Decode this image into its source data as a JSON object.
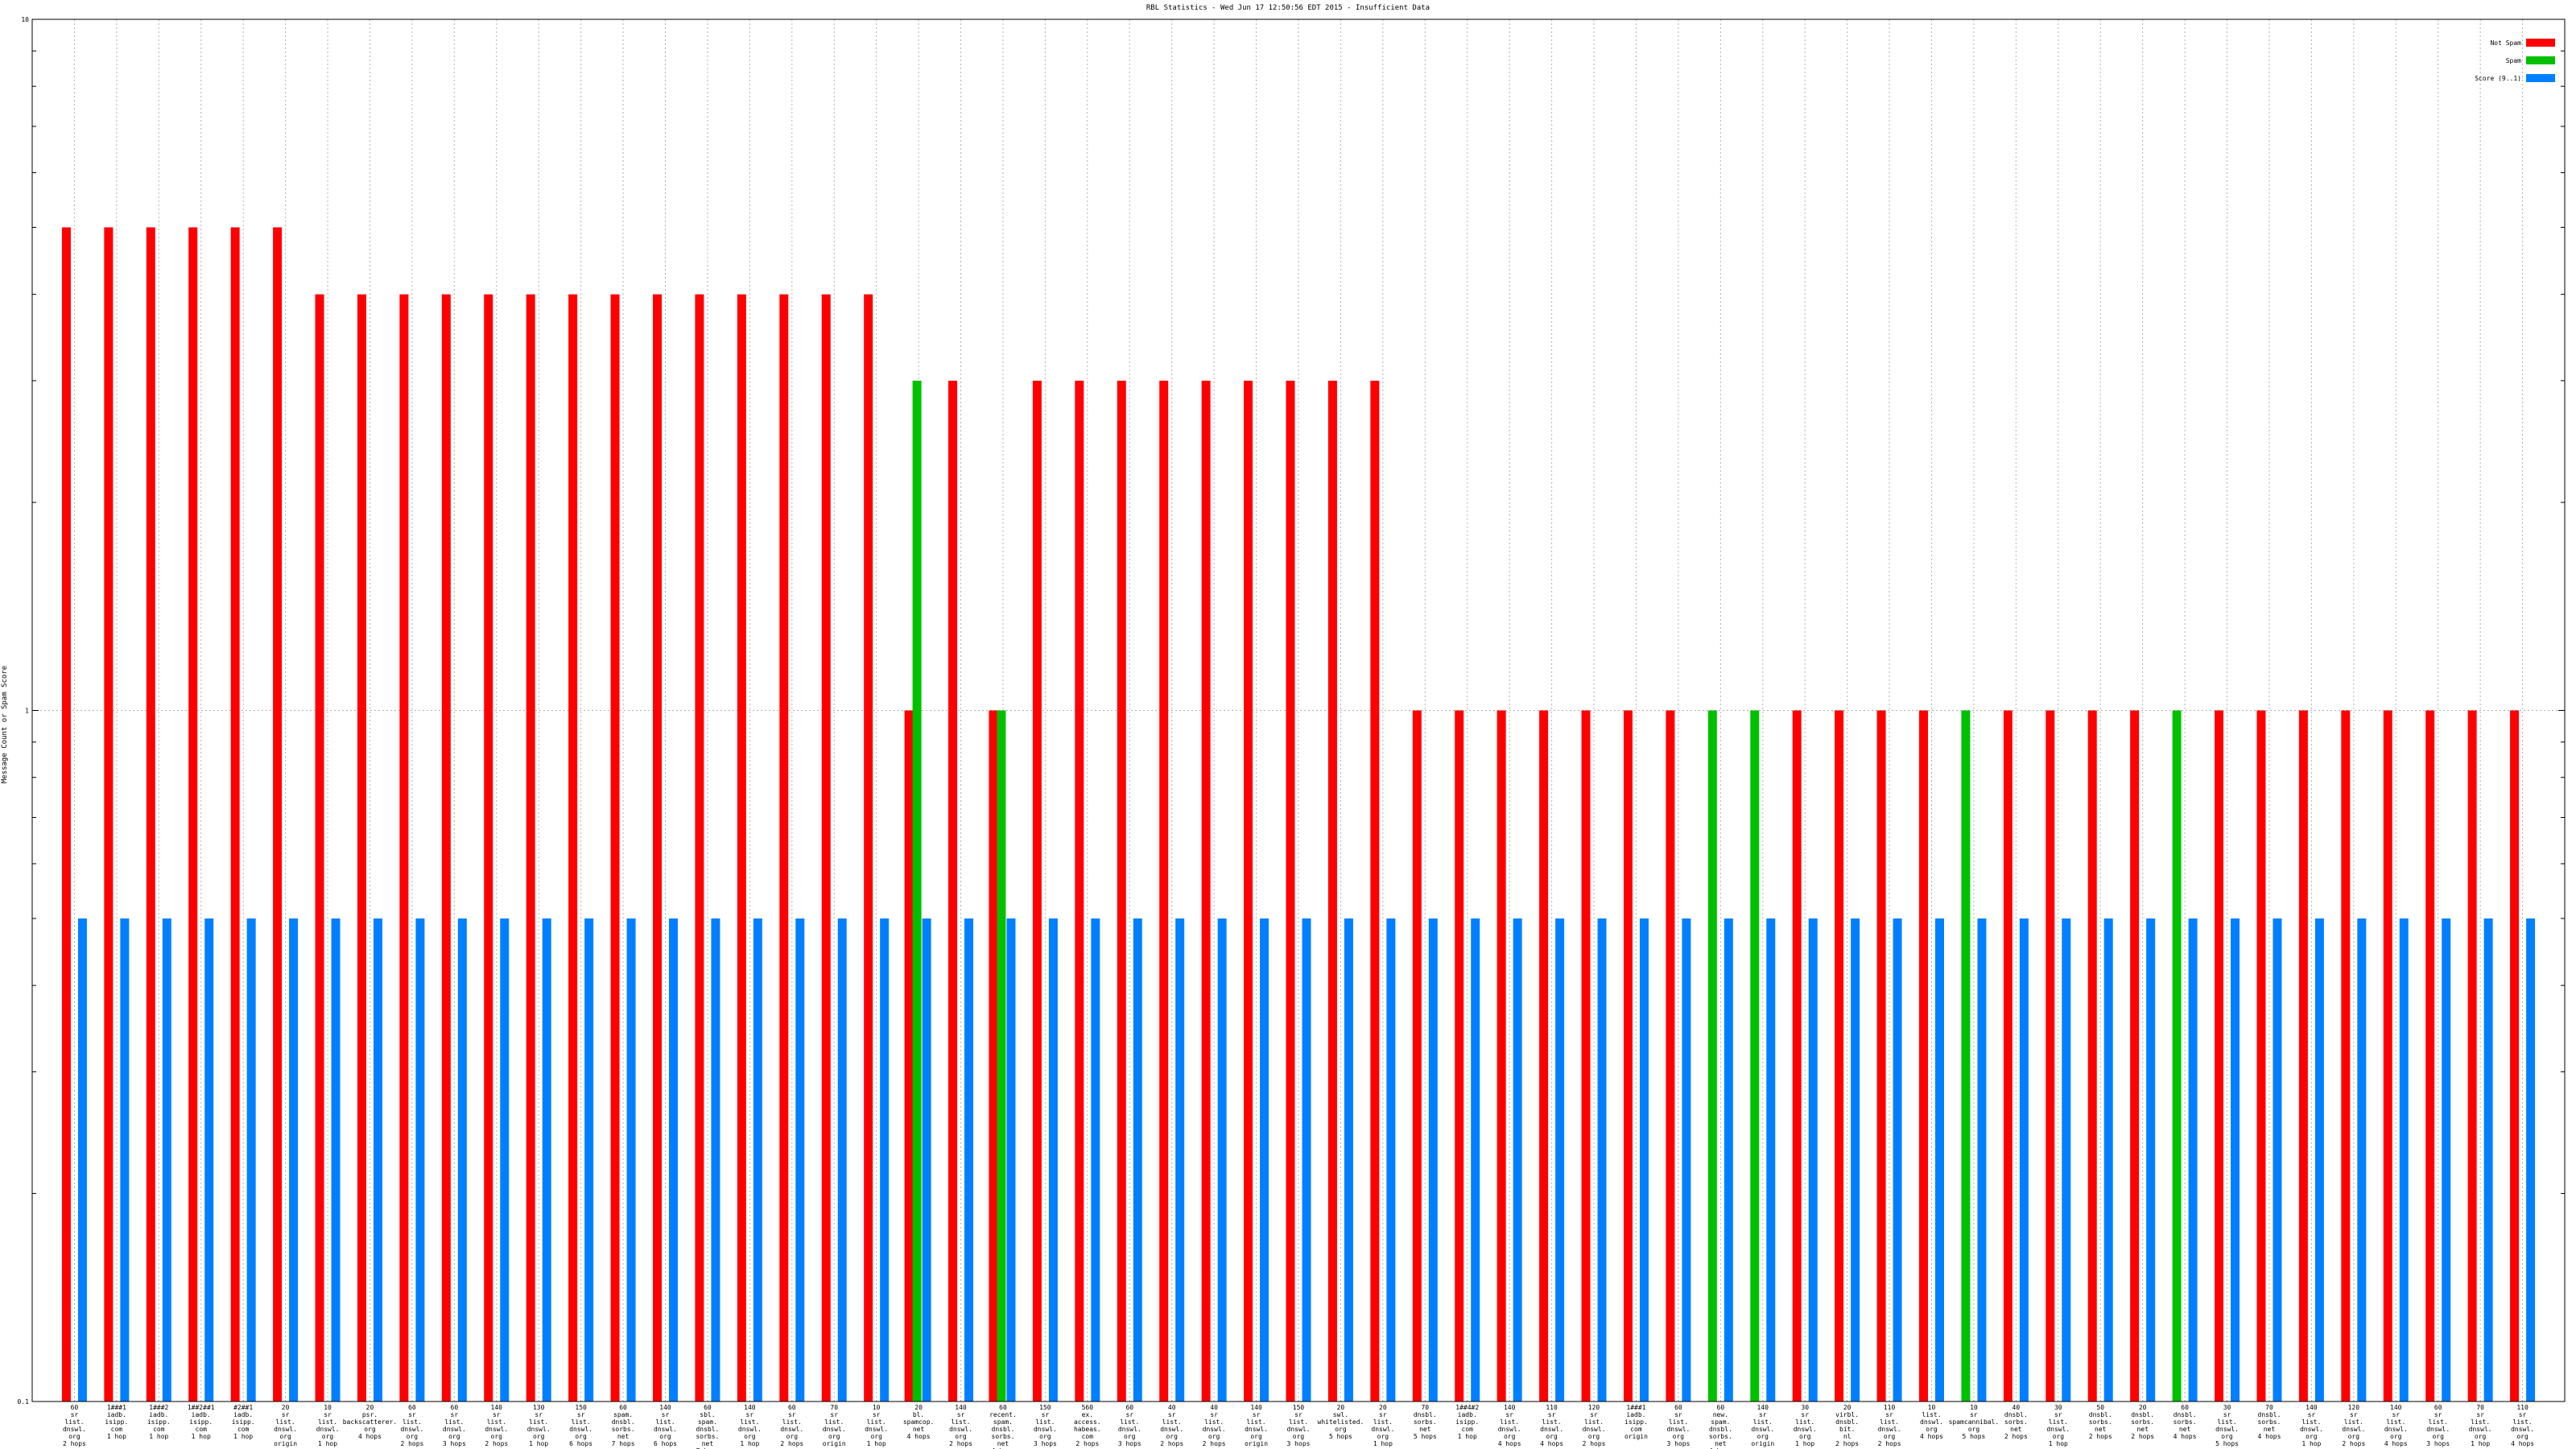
{
  "chart_data": {
    "type": "bar",
    "title": "RBL Statistics - Wed Jun 17 12:50:56 EDT 2015 - Insufficient Data",
    "xlabel": "",
    "ylabel": "Message Count or Spam Score",
    "yscale": "log",
    "ylim": [
      0.1,
      10
    ],
    "ytick_labels": [
      "10",
      "1",
      "0.1"
    ],
    "grid": true,
    "legend_position": "top-right",
    "categories": [
      "60 sr list. dnswl. org 2 hops",
      "1###1 iadb. isipp. com 1 hop",
      "1###2 iadb. isipp. com 1 hop",
      "1##2##1 iadb. isipp. com 1 hop",
      "#2##1 iadb. isipp. com 1 hop",
      "20 sr list. dnswl. org origin",
      "10 sr list. dnswl. org 1 hop",
      "20 psr. backscatterer. org 4 hops",
      "60 sr list. dnswl. org 2 hops",
      "60 sr list. dnswl. org 3 hops",
      "140 sr list. dnswl. org 2 hops",
      "130 sr list. dnswl. org 1 hop",
      "150 sr list. dnswl. org 6 hops",
      "60 spam. dnsbl. sorbs. net 7 hops",
      "140 sr list. dnswl. org 6 hops",
      "60 sbl. spam. dnsbl. sorbs. net 7 hops",
      "140 sr list. dnswl. org 1 hop",
      "60 sr list. dnswl. org 2 hops",
      "70 sr list. dnswl. org origin",
      "10 sr list. dnswl. org 1 hop",
      "20 bl. spamcop. net 4 hops",
      "140 sr list. dnswl. org 2 hops",
      "60 recent. spam. dnsbl. sorbs. net 4 hops",
      "150 sr list. dnswl. org 3 hops",
      "560 ex. access. habeas. com 2 hops",
      "60 sr list. dnswl. org 3 hops",
      "40 sr list. dnswl. org 2 hops",
      "40 sr list. dnswl. org 2 hops",
      "140 sr list. dnswl. org origin",
      "150 sr list. dnswl. org 3 hops",
      "20 swl. whitelisted. org 5 hops",
      "20 sr list. dnswl. org 1 hop",
      "70 dnsbl. sorbs. net 5 hops",
      "1##4#2 iadb. isipp. com 1 hop",
      "140 sr list. dnswl. org 4 hops",
      "110 sr list. dnswl. org 4 hops",
      "120 sr list. dnswl. org 2 hops",
      "1###1 iadb. isipp. com origin",
      "60 sr list. dnswl. org 3 hops",
      "60 new. spam. dnsbl. sorbs. net 4 hops",
      "140 sr list. dnswl. org origin",
      "30 sr list. dnswl. org 1 hop",
      "20 virbl. dnsbl. bit. nl 2 hops",
      "110 sr list. dnswl. org 2 hops",
      "10 list. dnswl. org 4 hops",
      "10 sr spamcannibal. org 5 hops",
      "40 dnsbl. sorbs. net 2 hops",
      "30 sr list. dnswl. org 1 hop",
      "50 dnsbl. sorbs. net 2 hops",
      "20 dnsbl. sorbs. net 2 hops",
      "60 dnsbl. sorbs. net 4 hops",
      "30 sr list. dnswl. org 5 hops",
      "70 dnsbl. sorbs. net 4 hops",
      "140 sr list. dnswl. org 1 hop",
      "120 sr list. dnswl. org 2 hops",
      "140 sr list. dnswl. org 4 hops",
      "60 sr list. dnswl. org 3 hops",
      "70 sr list. dnswl. org 1 hop",
      "110 sr list. dnswl. org 4 hops"
    ],
    "series": [
      {
        "name": "Not Spam",
        "color": "#ff0000",
        "values": [
          5,
          5,
          5,
          5,
          5,
          5,
          4,
          4,
          4,
          4,
          4,
          4,
          4,
          4,
          4,
          4,
          4,
          4,
          4,
          4,
          1,
          3,
          1,
          3,
          3,
          3,
          3,
          3,
          3,
          3,
          3,
          3,
          1,
          1,
          1,
          1,
          1,
          1,
          1,
          0,
          0,
          1,
          1,
          1,
          1,
          0,
          1,
          1,
          1,
          1,
          0,
          1,
          1,
          1,
          1,
          1,
          1,
          1,
          1
        ]
      },
      {
        "name": "Spam",
        "color": "#00c000",
        "values": [
          0,
          0,
          0,
          0,
          0,
          0,
          0,
          0,
          0,
          0,
          0,
          0,
          0,
          0,
          0,
          0,
          0,
          0,
          0,
          0,
          3,
          0,
          1,
          0,
          0,
          0,
          0,
          0,
          0,
          0,
          0,
          0,
          0,
          0,
          0,
          0,
          0,
          0,
          0,
          1,
          1,
          0,
          0,
          0,
          0,
          1,
          0,
          0,
          0,
          0,
          1,
          0,
          0,
          0,
          0,
          0,
          0,
          0,
          0
        ]
      },
      {
        "name": "Score (9..1)",
        "color": "#0080ff",
        "values": [
          0.5,
          0.5,
          0.5,
          0.5,
          0.5,
          0.5,
          0.5,
          0.5,
          0.5,
          0.5,
          0.5,
          0.5,
          0.5,
          0.5,
          0.5,
          0.5,
          0.5,
          0.5,
          0.5,
          0.5,
          0.5,
          0.5,
          0.5,
          0.5,
          0.5,
          0.5,
          0.5,
          0.5,
          0.5,
          0.5,
          0.5,
          0.5,
          0.5,
          0.5,
          0.5,
          0.5,
          0.5,
          0.5,
          0.5,
          0.5,
          0.5,
          0.5,
          0.5,
          0.5,
          0.5,
          0.5,
          0.5,
          0.5,
          0.5,
          0.5,
          0.5,
          0.5,
          0.5,
          0.5,
          0.5,
          0.5,
          0.5,
          0.5,
          0.5
        ]
      }
    ]
  }
}
